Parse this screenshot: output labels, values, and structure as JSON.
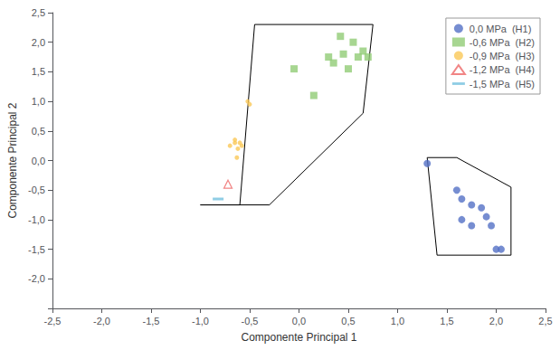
{
  "chart_data": {
    "type": "scatter",
    "xlabel": "Componente Principal 1",
    "ylabel": "Componente Principal 2",
    "xlim": [
      -2.5,
      2.5
    ],
    "ylim": [
      -2.5,
      2.5
    ],
    "xticks": [
      {
        "value": -2.5,
        "label": "-2,5"
      },
      {
        "value": -2.0,
        "label": "-2,0"
      },
      {
        "value": -1.5,
        "label": "-1,5"
      },
      {
        "value": -1.0,
        "label": "-1,0"
      },
      {
        "value": -0.5,
        "label": "-0,5"
      },
      {
        "value": 0.0,
        "label": "0,0"
      },
      {
        "value": 0.5,
        "label": "0,5"
      },
      {
        "value": 1.0,
        "label": "1,0"
      },
      {
        "value": 1.5,
        "label": "1,5"
      },
      {
        "value": 2.0,
        "label": "2,0"
      },
      {
        "value": 2.5,
        "label": "2,5"
      }
    ],
    "yticks": [
      {
        "value": -2.5,
        "label": null
      },
      {
        "value": -2.0,
        "label": "-2,0"
      },
      {
        "value": -1.5,
        "label": "-1,5"
      },
      {
        "value": -1.0,
        "label": "-1,0"
      },
      {
        "value": -0.5,
        "label": "-0,5"
      },
      {
        "value": 0.0,
        "label": "0,0"
      },
      {
        "value": 0.5,
        "label": "0,5"
      },
      {
        "value": 1.0,
        "label": "1,0"
      },
      {
        "value": 1.5,
        "label": "1,5"
      },
      {
        "value": 2.0,
        "label": "2,0"
      },
      {
        "value": 2.5,
        "label": "2,5"
      }
    ],
    "grid": false,
    "legend": "upper right",
    "series": [
      {
        "name": "0,0 MPa  (H1)",
        "marker": "circle",
        "x": [
          1.3,
          1.6,
          1.65,
          1.75,
          1.85,
          1.9,
          1.65,
          1.75,
          1.95,
          2.0,
          2.05
        ],
        "y": [
          -0.05,
          -0.5,
          -0.65,
          -0.75,
          -0.8,
          -0.95,
          -1.0,
          -1.1,
          -1.1,
          -1.5,
          -1.5
        ]
      },
      {
        "name": "-0,6 MPa  (H2)",
        "marker": "square",
        "x": [
          -0.05,
          0.15,
          0.3,
          0.35,
          0.42,
          0.45,
          0.5,
          0.55,
          0.6,
          0.65,
          0.7
        ],
        "y": [
          1.55,
          1.1,
          1.75,
          1.65,
          2.1,
          1.8,
          1.55,
          2.0,
          1.75,
          1.85,
          1.75
        ]
      },
      {
        "name": "-0,9 MPa  (H3)",
        "marker": "dot",
        "x": [
          -0.5,
          -0.52,
          -0.58,
          -0.6,
          -0.62,
          -0.65,
          -0.65,
          -0.63,
          -0.7
        ],
        "y": [
          0.95,
          1.0,
          0.25,
          0.3,
          0.2,
          0.3,
          0.35,
          0.05,
          0.25
        ]
      },
      {
        "name": "-1,2 MPa  (H4)",
        "marker": "triangle_open",
        "x": [
          -0.72
        ],
        "y": [
          -0.4
        ]
      },
      {
        "name": "-1,5 MPa  (H5)",
        "marker": "dash",
        "x": [
          -0.82
        ],
        "y": [
          -0.65
        ]
      }
    ],
    "polygons": [
      {
        "x": [
          -1.0,
          -0.6,
          -0.45,
          0.75,
          0.65,
          -0.3
        ],
        "y": [
          -0.75,
          -0.75,
          2.3,
          2.3,
          0.8,
          -0.75
        ],
        "color": "#000000"
      },
      {
        "x": [
          1.3,
          1.4,
          2.15,
          2.15,
          1.6
        ],
        "y": [
          0.05,
          -1.6,
          -1.6,
          -0.45,
          0.05
        ],
        "color": "#000000"
      }
    ]
  }
}
